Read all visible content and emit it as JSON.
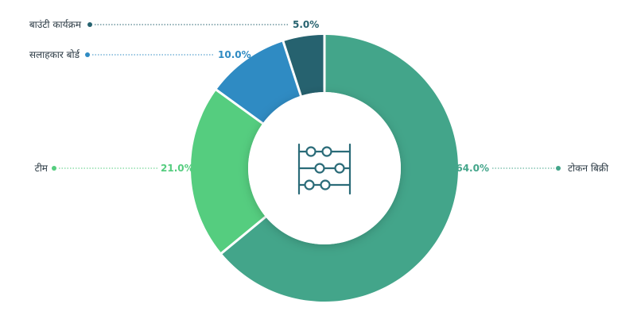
{
  "chart_data": {
    "type": "pie",
    "variant": "donut",
    "categories": [
      "टोकन बिक्री",
      "टीम",
      "सलाहकार बोर्ड",
      "बाउंटी कार्यक्रम"
    ],
    "values": [
      64.0,
      21.0,
      10.0,
      5.0
    ],
    "value_labels": [
      "64.0%",
      "21.0%",
      "10.0%",
      "5.0%"
    ],
    "colors": [
      "#43a58a",
      "#55cd7f",
      "#2f8bc3",
      "#26626f"
    ],
    "label_colors": [
      "#43a58a",
      "#55cd7f",
      "#2f8bc3",
      "#26626f"
    ],
    "center_icon": "abacus-icon",
    "center_icon_color": "#2a6b78",
    "title": ""
  }
}
